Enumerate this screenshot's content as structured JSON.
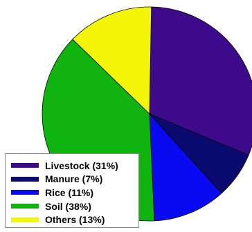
{
  "chart_data": {
    "type": "pie",
    "categories": [
      "Livestock",
      "Manure",
      "Rice",
      "Soil",
      "Others"
    ],
    "values": [
      31,
      7,
      11,
      38,
      13
    ],
    "colors": [
      "#3d0a8c",
      "#0a0a6e",
      "#0a0af0",
      "#0fb40f",
      "#f5f50a"
    ],
    "title": "",
    "legend": {
      "position": "bottom-left",
      "labels": [
        "Livestock (31%)",
        "Manure (7%)",
        "Rice (11%)",
        "Soil (38%)",
        "Others (13%)"
      ]
    }
  }
}
